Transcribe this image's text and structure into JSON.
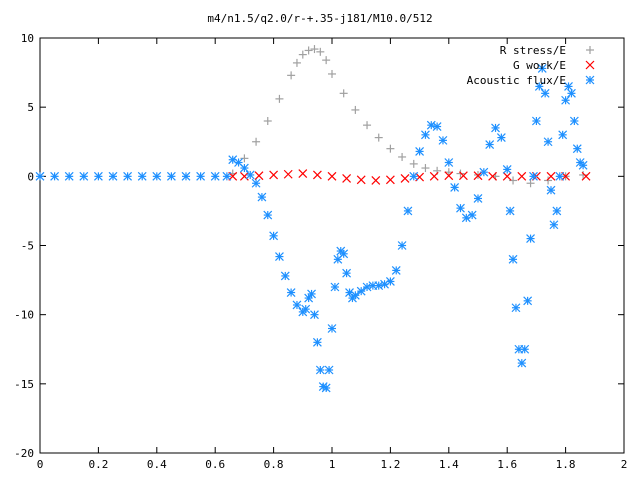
{
  "chart_data": {
    "type": "scatter",
    "title": "m4/n1.5/q2.0/r-+.35-j181/M10.0/512",
    "xlabel": "",
    "ylabel": "",
    "xlim": [
      0,
      2
    ],
    "ylim": [
      -20,
      10
    ],
    "x_ticks": [
      "0",
      "0.2",
      "0.4",
      "0.6",
      "0.8",
      "1",
      "1.2",
      "1.4",
      "1.6",
      "1.8",
      "2"
    ],
    "y_ticks": [
      "10",
      "5",
      "0",
      "-5",
      "-10",
      "-15",
      "-20"
    ],
    "grid": false,
    "legend_position": "top-right",
    "series": [
      {
        "name": "R stress/E",
        "marker": "plus",
        "color": "#a0a0a0",
        "x": [
          0.66,
          0.7,
          0.74,
          0.78,
          0.82,
          0.86,
          0.88,
          0.9,
          0.92,
          0.94,
          0.96,
          0.98,
          1.0,
          1.04,
          1.08,
          1.12,
          1.16,
          1.2,
          1.24,
          1.28,
          1.32,
          1.36,
          1.4,
          1.44,
          1.5,
          1.56,
          1.62,
          1.68,
          1.74,
          1.8,
          1.86
        ],
        "y": [
          0.2,
          1.3,
          2.5,
          4.0,
          5.6,
          7.3,
          8.2,
          8.8,
          9.1,
          9.2,
          9.0,
          8.4,
          7.4,
          6.0,
          4.8,
          3.7,
          2.8,
          2.0,
          1.4,
          0.9,
          0.6,
          0.4,
          0.3,
          0.2,
          0.1,
          0.0,
          -0.3,
          -0.5,
          -0.3,
          0.0,
          0.1
        ]
      },
      {
        "name": "G work/E",
        "marker": "cross",
        "color": "#ff0000",
        "x": [
          0.66,
          0.7,
          0.75,
          0.8,
          0.85,
          0.9,
          0.95,
          1.0,
          1.05,
          1.1,
          1.15,
          1.2,
          1.25,
          1.3,
          1.35,
          1.4,
          1.45,
          1.5,
          1.55,
          1.6,
          1.65,
          1.7,
          1.75,
          1.8,
          1.87
        ],
        "y": [
          0.0,
          0.0,
          0.05,
          0.1,
          0.15,
          0.2,
          0.1,
          0.0,
          -0.15,
          -0.25,
          -0.3,
          -0.25,
          -0.15,
          -0.05,
          0.0,
          0.05,
          0.05,
          0.05,
          0.0,
          0.0,
          0.0,
          0.0,
          0.0,
          0.0,
          0.0
        ]
      },
      {
        "name": "Acoustic flux/E",
        "marker": "star",
        "color": "#1e90ff",
        "x": [
          0.0,
          0.05,
          0.1,
          0.15,
          0.2,
          0.25,
          0.3,
          0.35,
          0.4,
          0.45,
          0.5,
          0.55,
          0.6,
          0.64,
          0.66,
          0.68,
          0.7,
          0.72,
          0.74,
          0.76,
          0.78,
          0.8,
          0.82,
          0.84,
          0.86,
          0.88,
          0.9,
          0.91,
          0.92,
          0.93,
          0.94,
          0.95,
          0.96,
          0.97,
          0.98,
          0.99,
          1.0,
          1.01,
          1.02,
          1.03,
          1.04,
          1.05,
          1.06,
          1.07,
          1.08,
          1.1,
          1.12,
          1.14,
          1.16,
          1.18,
          1.2,
          1.22,
          1.24,
          1.26,
          1.28,
          1.3,
          1.32,
          1.34,
          1.36,
          1.38,
          1.4,
          1.42,
          1.44,
          1.46,
          1.48,
          1.5,
          1.52,
          1.54,
          1.56,
          1.58,
          1.6,
          1.61,
          1.62,
          1.63,
          1.64,
          1.65,
          1.66,
          1.67,
          1.68,
          1.69,
          1.7,
          1.71,
          1.72,
          1.73,
          1.74,
          1.75,
          1.76,
          1.77,
          1.78,
          1.79,
          1.8,
          1.81,
          1.82,
          1.83,
          1.84,
          1.85,
          1.86
        ],
        "y": [
          0,
          0,
          0,
          0,
          0,
          0,
          0,
          0,
          0,
          0,
          0,
          0,
          0,
          0,
          1.2,
          1.0,
          0.6,
          0.1,
          -0.5,
          -1.5,
          -2.8,
          -4.3,
          -5.8,
          -7.2,
          -8.4,
          -9.3,
          -9.8,
          -9.6,
          -8.8,
          -8.5,
          -10.0,
          -12.0,
          -14.0,
          -15.2,
          -15.3,
          -14.0,
          -11.0,
          -8.0,
          -6.0,
          -5.4,
          -5.6,
          -7.0,
          -8.4,
          -8.8,
          -8.6,
          -8.3,
          -8.0,
          -7.9,
          -7.9,
          -7.8,
          -7.6,
          -6.8,
          -5.0,
          -2.5,
          0.0,
          1.8,
          3.0,
          3.7,
          3.6,
          2.6,
          1.0,
          -0.8,
          -2.3,
          -3.0,
          -2.8,
          -1.6,
          0.3,
          2.3,
          3.5,
          2.8,
          0.5,
          -2.5,
          -6.0,
          -9.5,
          -12.5,
          -13.5,
          -12.5,
          -9.0,
          -4.5,
          0.0,
          4.0,
          6.5,
          7.8,
          6.0,
          2.5,
          -1.0,
          -3.5,
          -2.5,
          0.0,
          3.0,
          5.5,
          6.5,
          6.0,
          4.0,
          2.0,
          1.0,
          0.8
        ]
      }
    ]
  }
}
